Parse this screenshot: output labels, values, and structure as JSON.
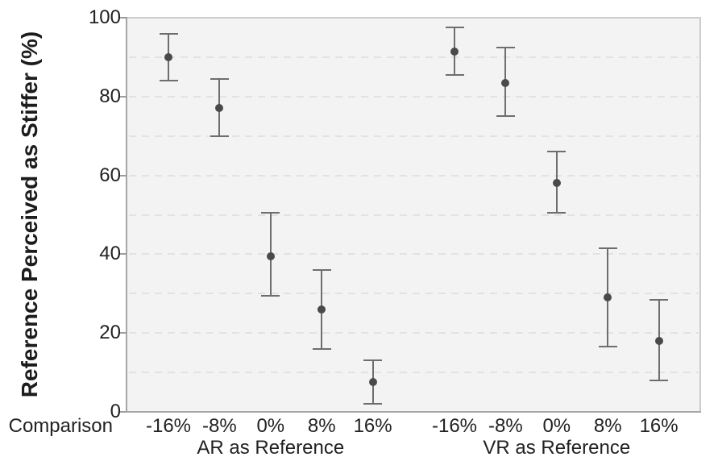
{
  "chart_data": {
    "type": "scatter",
    "title": "",
    "ylabel": "Reference Perceived as Stiffer (%)",
    "xlabel": "Comparison",
    "ylim": [
      0,
      100
    ],
    "yticks": [
      0,
      20,
      40,
      60,
      80,
      100
    ],
    "minor_gridlines_every": 10,
    "grid_style": "dashed horizontal",
    "legend": "none",
    "groups": [
      {
        "label": "AR as Reference",
        "categories": [
          "-16%",
          "-8%",
          "0%",
          "8%",
          "16%"
        ],
        "points": [
          {
            "category": "-16%",
            "mean": 90,
            "ci_low": 84,
            "ci_high": 96
          },
          {
            "category": "-8%",
            "mean": 77,
            "ci_low": 70,
            "ci_high": 84.5
          },
          {
            "category": "0%",
            "mean": 39.5,
            "ci_low": 29.5,
            "ci_high": 50.5
          },
          {
            "category": "8%",
            "mean": 26,
            "ci_low": 16,
            "ci_high": 36
          },
          {
            "category": "16%",
            "mean": 7.5,
            "ci_low": 2,
            "ci_high": 13
          }
        ]
      },
      {
        "label": "VR as Reference",
        "categories": [
          "-16%",
          "-8%",
          "0%",
          "8%",
          "16%"
        ],
        "points": [
          {
            "category": "-16%",
            "mean": 91.5,
            "ci_low": 85.5,
            "ci_high": 97.5
          },
          {
            "category": "-8%",
            "mean": 83.5,
            "ci_low": 75,
            "ci_high": 92.5
          },
          {
            "category": "0%",
            "mean": 58,
            "ci_low": 50.5,
            "ci_high": 66
          },
          {
            "category": "8%",
            "mean": 29,
            "ci_low": 16.5,
            "ci_high": 41.5
          },
          {
            "category": "16%",
            "mean": 18,
            "ci_low": 8,
            "ci_high": 28.5
          }
        ]
      }
    ],
    "colors": {
      "plot_background": "#f3f3f3",
      "point": "#4a4a4a",
      "error_bar": "#6e6e6e",
      "gridline": "#e2e2e2",
      "axis_line": "#a6a6a6",
      "border_line": "#cccccc",
      "text": "#222222"
    }
  }
}
